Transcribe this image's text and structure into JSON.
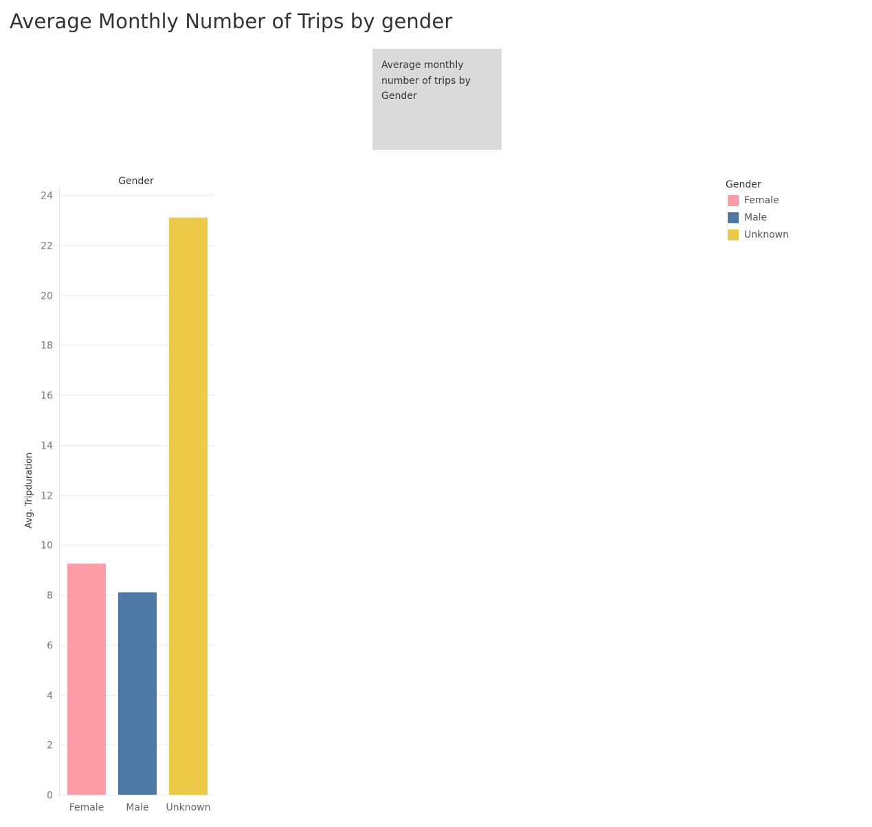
{
  "title": "Average Monthly Number of Trips by gender",
  "caption": "Average monthly number of trips by Gender",
  "legend": {
    "title": "Gender",
    "items": [
      {
        "label": "Female",
        "color": "#ff9da7"
      },
      {
        "label": "Male",
        "color": "#4e79a7"
      },
      {
        "label": "Unknown",
        "color": "#edc948"
      }
    ]
  },
  "chart_data": {
    "type": "bar",
    "title": "Average Monthly Number of Trips by gender",
    "column_header": "Gender",
    "ylabel": "Avg. Tripduration",
    "xlabel": "",
    "categories": [
      "Female",
      "Male",
      "Unknown"
    ],
    "values": [
      9.25,
      8.1,
      23.1
    ],
    "colors": [
      "#ff9da7",
      "#4e79a7",
      "#edc948"
    ],
    "ylim": [
      0,
      24
    ],
    "yticks": [
      0,
      2,
      4,
      6,
      8,
      10,
      12,
      14,
      16,
      18,
      20,
      22,
      24
    ],
    "grid": true,
    "legend_position": "top-right"
  }
}
